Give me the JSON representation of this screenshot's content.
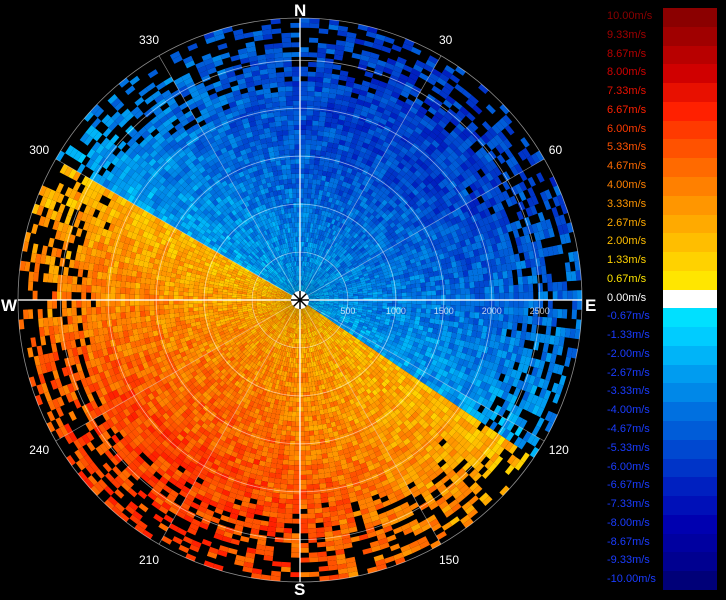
{
  "compass": {
    "north": "N",
    "south": "S",
    "east": "E",
    "west": "W"
  },
  "bearings": [
    {
      "angle": 30,
      "label": "30"
    },
    {
      "angle": 60,
      "label": "60"
    },
    {
      "angle": 120,
      "label": "120"
    },
    {
      "angle": 150,
      "label": "150"
    },
    {
      "angle": 210,
      "label": "210"
    },
    {
      "angle": 240,
      "label": "240"
    },
    {
      "angle": 300,
      "label": "300"
    },
    {
      "angle": 330,
      "label": "330"
    }
  ],
  "range_labels": [
    "500",
    "1000",
    "1500",
    "2000",
    "2500"
  ],
  "legend": [
    {
      "label": "10.00m/s",
      "color": "#8b0000"
    },
    {
      "label": "9.33m/s",
      "color": "#a00000"
    },
    {
      "label": "8.67m/s",
      "color": "#b80000"
    },
    {
      "label": "8.00m/s",
      "color": "#d00000"
    },
    {
      "label": "7.33m/s",
      "color": "#e81000"
    },
    {
      "label": "6.67m/s",
      "color": "#ff2000"
    },
    {
      "label": "6.00m/s",
      "color": "#ff3a00"
    },
    {
      "label": "5.33m/s",
      "color": "#ff5200"
    },
    {
      "label": "4.67m/s",
      "color": "#ff6a00"
    },
    {
      "label": "4.00m/s",
      "color": "#ff8000"
    },
    {
      "label": "3.33m/s",
      "color": "#ff9600"
    },
    {
      "label": "2.67m/s",
      "color": "#ffaa00"
    },
    {
      "label": "2.00m/s",
      "color": "#ffbe00"
    },
    {
      "label": "1.33m/s",
      "color": "#ffd200"
    },
    {
      "label": "0.67m/s",
      "color": "#ffe600"
    },
    {
      "label": "0.00m/s",
      "color": "#ffffff"
    },
    {
      "label": "-0.67m/s",
      "color": "#00e0ff"
    },
    {
      "label": "-1.33m/s",
      "color": "#00ccff"
    },
    {
      "label": "-2.00m/s",
      "color": "#00b4f8"
    },
    {
      "label": "-2.67m/s",
      "color": "#009cf0"
    },
    {
      "label": "-3.33m/s",
      "color": "#0088e8"
    },
    {
      "label": "-4.00m/s",
      "color": "#0070e0"
    },
    {
      "label": "-4.67m/s",
      "color": "#005cd8"
    },
    {
      "label": "-5.33m/s",
      "color": "#0048d0"
    },
    {
      "label": "-6.00m/s",
      "color": "#0034c8"
    },
    {
      "label": "-6.67m/s",
      "color": "#0020c0"
    },
    {
      "label": "-7.33m/s",
      "color": "#0010b8"
    },
    {
      "label": "-8.00m/s",
      "color": "#0000b0"
    },
    {
      "label": "-8.67m/s",
      "color": "#0000a0"
    },
    {
      "label": "-9.33m/s",
      "color": "#000090"
    },
    {
      "label": "-10.00m/s",
      "color": "#000078"
    }
  ]
}
